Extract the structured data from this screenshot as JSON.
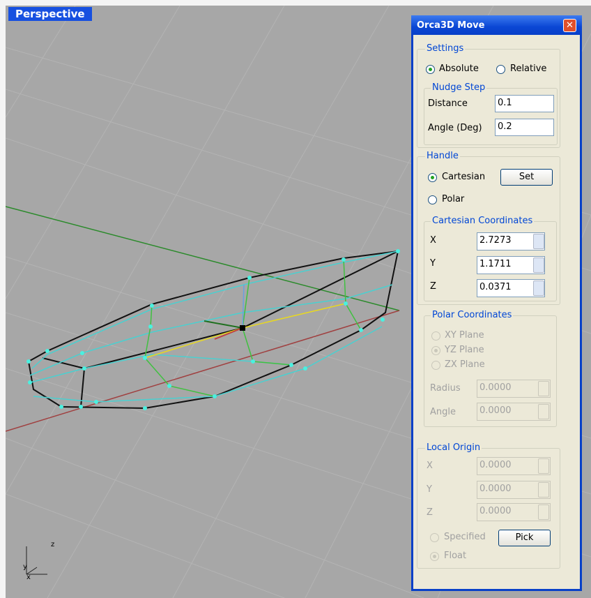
{
  "viewport": {
    "label": "Perspective",
    "axis_labels": [
      "z",
      "y",
      "x"
    ]
  },
  "dialog": {
    "title": "Orca3D Move",
    "settings": {
      "legend": "Settings",
      "options": [
        "Absolute",
        "Relative"
      ],
      "nudge_step": {
        "legend": "Nudge Step",
        "fields": [
          {
            "label": "Distance",
            "value": "0.1"
          },
          {
            "label": "Angle (Deg)",
            "value": "0.2"
          }
        ]
      }
    },
    "handle": {
      "legend": "Handle",
      "options": [
        "Cartesian",
        "Polar"
      ],
      "button": "Set",
      "cartesian": {
        "legend": "Cartesian Coordinates",
        "fields": [
          {
            "label": "X",
            "value": "2.7273"
          },
          {
            "label": "Y",
            "value": "1.1711"
          },
          {
            "label": "Z",
            "value": "0.0371"
          }
        ]
      },
      "polar": {
        "legend": "Polar Coordinates",
        "options": [
          "XY Plane",
          "YZ Plane",
          "ZX Plane"
        ],
        "fields": [
          {
            "label": "Radius",
            "value": "0.0000"
          },
          {
            "label": "Angle",
            "value": "0.0000"
          }
        ]
      }
    },
    "local_origin": {
      "legend": "Local Origin",
      "fields": [
        {
          "label": "X",
          "value": "0.0000"
        },
        {
          "label": "Y",
          "value": "0.0000"
        },
        {
          "label": "Z",
          "value": "0.0000"
        }
      ],
      "options": [
        "Specified",
        "Float"
      ],
      "button": "Pick"
    }
  }
}
